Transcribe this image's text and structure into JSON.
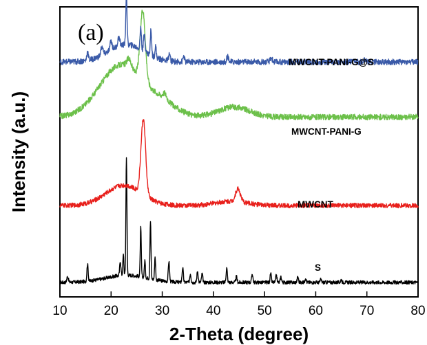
{
  "chart_data": {
    "type": "line",
    "panel_label": "(a)",
    "xlabel": "2-Theta (degree)",
    "ylabel": "Intensity (a.u.)",
    "xlim": [
      10,
      80
    ],
    "x_ticks": [
      10,
      20,
      30,
      40,
      50,
      60,
      70,
      80
    ],
    "y_ticks": "none",
    "grid": false,
    "legend": "inline labels next to each curve",
    "series": [
      {
        "name": "S",
        "color": "#000000",
        "offset": 0.05,
        "baseline": 0.0,
        "noise": 0.006,
        "peaks": [
          [
            11.5,
            0.02,
            0.15
          ],
          [
            15.4,
            0.06,
            0.12
          ],
          [
            21.8,
            0.05,
            0.12
          ],
          [
            22.4,
            0.07,
            0.1
          ],
          [
            23.0,
            0.41,
            0.1
          ],
          [
            25.8,
            0.17,
            0.1
          ],
          [
            26.6,
            0.06,
            0.1
          ],
          [
            27.7,
            0.2,
            0.1
          ],
          [
            28.6,
            0.08,
            0.1
          ],
          [
            31.3,
            0.07,
            0.12
          ],
          [
            34.0,
            0.05,
            0.12
          ],
          [
            35.5,
            0.03,
            0.12
          ],
          [
            36.9,
            0.04,
            0.12
          ],
          [
            37.8,
            0.03,
            0.12
          ],
          [
            42.6,
            0.05,
            0.12
          ],
          [
            44.5,
            0.02,
            0.12
          ],
          [
            47.6,
            0.03,
            0.12
          ],
          [
            51.2,
            0.03,
            0.12
          ],
          [
            52.3,
            0.025,
            0.12
          ],
          [
            53.2,
            0.02,
            0.12
          ],
          [
            56.5,
            0.02,
            0.12
          ],
          [
            58.0,
            0.015,
            0.12
          ],
          [
            61.0,
            0.01,
            0.12
          ],
          [
            65.0,
            0.01,
            0.12
          ]
        ],
        "broad": [
          [
            23.0,
            0.025,
            4.0
          ]
        ]
      },
      {
        "name": "MWCNT",
        "color": "#e8201c",
        "offset": 0.315,
        "baseline": 0.0,
        "noise": 0.008,
        "peaks": [
          [
            26.3,
            0.26,
            0.45
          ],
          [
            44.8,
            0.045,
            0.45
          ]
        ],
        "broad": [
          [
            22.5,
            0.07,
            3.5
          ],
          [
            43.5,
            0.015,
            3.0
          ]
        ]
      },
      {
        "name": "MWCNT-PANI-G",
        "color": "#6cc04a",
        "offset": 0.62,
        "baseline": 0.0,
        "noise": 0.01,
        "peaks": [
          [
            26.2,
            0.24,
            0.5
          ],
          [
            23.5,
            0.03,
            0.4
          ],
          [
            30.5,
            0.02,
            0.4
          ]
        ],
        "broad": [
          [
            22.0,
            0.18,
            4.2
          ],
          [
            44.0,
            0.035,
            3.0
          ],
          [
            30.0,
            0.04,
            3.0
          ]
        ]
      },
      {
        "name": "MWCNT-PANI-G@S",
        "color": "#3a5aa8",
        "offset": 0.81,
        "baseline": 0.0,
        "noise": 0.01,
        "peaks": [
          [
            15.4,
            0.03,
            0.15
          ],
          [
            18.2,
            0.03,
            0.2
          ],
          [
            20.0,
            0.03,
            0.2
          ],
          [
            21.5,
            0.03,
            0.2
          ],
          [
            23.0,
            0.18,
            0.12
          ],
          [
            25.8,
            0.08,
            0.12
          ],
          [
            26.5,
            0.06,
            0.15
          ],
          [
            27.8,
            0.09,
            0.12
          ],
          [
            28.7,
            0.04,
            0.12
          ],
          [
            31.4,
            0.025,
            0.15
          ],
          [
            34.2,
            0.02,
            0.15
          ],
          [
            42.8,
            0.02,
            0.2
          ],
          [
            51.3,
            0.015,
            0.2
          ],
          [
            69.5,
            0.012,
            0.2
          ]
        ],
        "broad": [
          [
            23.0,
            0.06,
            3.5
          ]
        ]
      }
    ]
  }
}
